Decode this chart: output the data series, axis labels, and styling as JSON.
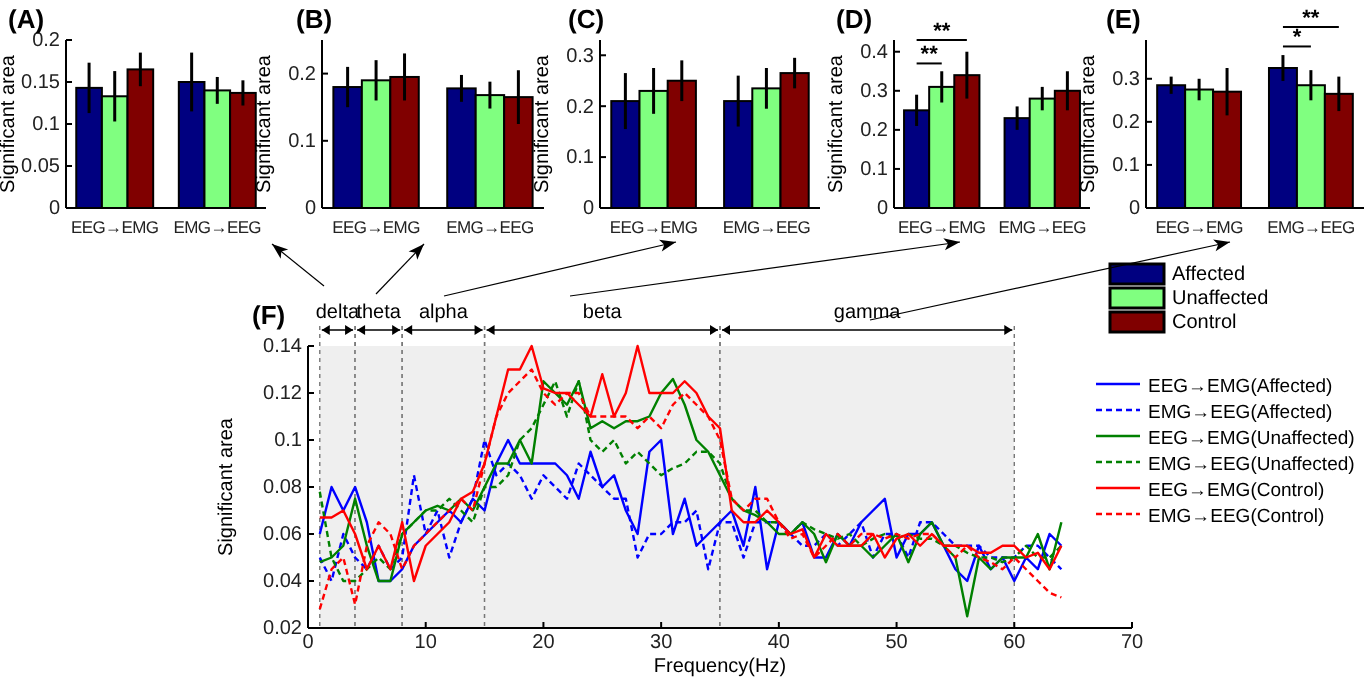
{
  "chart_data": [
    {
      "type": "bar",
      "title": "(A)",
      "ylabel": "Significant area",
      "categories": [
        "EEG→EMG",
        "EMG→EEG"
      ],
      "ylim": [
        0,
        0.2
      ],
      "yticks": [
        0,
        0.05,
        0.1,
        0.15,
        0.2
      ],
      "series": [
        {
          "color": "#000080",
          "values": [
            0.143,
            0.15
          ],
          "errors": [
            0.03,
            0.035
          ]
        },
        {
          "color": "#80ff80",
          "values": [
            0.133,
            0.14
          ],
          "errors": [
            0.03,
            0.016
          ]
        },
        {
          "color": "#800000",
          "values": [
            0.165,
            0.137
          ],
          "errors": [
            0.02,
            0.015
          ]
        }
      ]
    },
    {
      "type": "bar",
      "title": "(B)",
      "ylabel": "Significant area",
      "categories": [
        "EEG→EMG",
        "EMG→EEG"
      ],
      "ylim": [
        0,
        0.25
      ],
      "yticks": [
        0,
        0.1,
        0.2
      ],
      "series": [
        {
          "color": "#000080",
          "values": [
            0.18,
            0.178
          ],
          "errors": [
            0.03,
            0.02
          ]
        },
        {
          "color": "#80ff80",
          "values": [
            0.19,
            0.168
          ],
          "errors": [
            0.03,
            0.02
          ]
        },
        {
          "color": "#800000",
          "values": [
            0.195,
            0.165
          ],
          "errors": [
            0.035,
            0.04
          ]
        }
      ]
    },
    {
      "type": "bar",
      "title": "(C)",
      "ylabel": "Significant area",
      "categories": [
        "EEG→EMG",
        "EMG→EEG"
      ],
      "ylim": [
        0,
        0.33
      ],
      "yticks": [
        0,
        0.1,
        0.2,
        0.3
      ],
      "series": [
        {
          "color": "#000080",
          "values": [
            0.21,
            0.21
          ],
          "errors": [
            0.055,
            0.05
          ]
        },
        {
          "color": "#80ff80",
          "values": [
            0.23,
            0.235
          ],
          "errors": [
            0.045,
            0.04
          ]
        },
        {
          "color": "#800000",
          "values": [
            0.25,
            0.265
          ],
          "errors": [
            0.04,
            0.03
          ]
        }
      ]
    },
    {
      "type": "bar",
      "title": "(D)",
      "ylabel": "Significant area",
      "categories": [
        "EEG→EMG",
        "EMG→EEG"
      ],
      "ylim": [
        0,
        0.43
      ],
      "yticks": [
        0,
        0.1,
        0.2,
        0.3,
        0.4
      ],
      "series": [
        {
          "color": "#000080",
          "values": [
            0.25,
            0.23
          ],
          "errors": [
            0.04,
            0.03
          ]
        },
        {
          "color": "#80ff80",
          "values": [
            0.31,
            0.28
          ],
          "errors": [
            0.04,
            0.03
          ]
        },
        {
          "color": "#800000",
          "values": [
            0.34,
            0.3
          ],
          "errors": [
            0.06,
            0.05
          ]
        }
      ],
      "annotations": [
        "**",
        "**"
      ]
    },
    {
      "type": "bar",
      "title": "(E)",
      "ylabel": "Significant area",
      "categories": [
        "EEG→EMG",
        "EMG→EEG"
      ],
      "ylim": [
        0,
        0.39
      ],
      "yticks": [
        0,
        0.1,
        0.2,
        0.3
      ],
      "legend": "bottom left",
      "series": [
        {
          "name": "Affected",
          "color": "#000080",
          "values": [
            0.285,
            0.325
          ],
          "errors": [
            0.02,
            0.03
          ]
        },
        {
          "name": "Unaffected",
          "color": "#80ff80",
          "values": [
            0.275,
            0.285
          ],
          "errors": [
            0.025,
            0.035
          ]
        },
        {
          "name": "Control",
          "color": "#800000",
          "values": [
            0.27,
            0.265
          ],
          "errors": [
            0.055,
            0.04
          ]
        }
      ],
      "annotations": [
        "*",
        "**"
      ]
    },
    {
      "type": "line",
      "title": "(F)",
      "xlabel": "Frequency(Hz)",
      "ylabel": "Significant area",
      "xlim": [
        0,
        70
      ],
      "xticks": [
        0,
        10,
        20,
        30,
        40,
        50,
        60,
        70
      ],
      "ylim": [
        0.02,
        0.14
      ],
      "yticks": [
        0.02,
        0.04,
        0.06,
        0.08,
        0.1,
        0.12,
        0.14
      ],
      "legend": "right",
      "bands": [
        {
          "axis": "x",
          "from": 1,
          "to": 4,
          "label": "delta",
          "color": "#efefef"
        },
        {
          "axis": "x",
          "from": 4,
          "to": 8,
          "label": "theta",
          "color": "#efefef"
        },
        {
          "axis": "x",
          "from": 8,
          "to": 15,
          "label": "alpha",
          "color": "#efefef"
        },
        {
          "axis": "x",
          "from": 15,
          "to": 35,
          "label": "beta",
          "color": "#efefef"
        },
        {
          "axis": "x",
          "from": 35,
          "to": 60,
          "label": "gamma",
          "color": "#efefef"
        }
      ],
      "x": [
        1,
        2,
        3,
        4,
        5,
        6,
        7,
        8,
        9,
        10,
        11,
        12,
        13,
        14,
        15,
        16,
        17,
        18,
        19,
        20,
        21,
        22,
        23,
        24,
        25,
        26,
        27,
        28,
        29,
        30,
        31,
        32,
        33,
        34,
        35,
        36,
        37,
        38,
        39,
        40,
        41,
        42,
        43,
        44,
        45,
        46,
        47,
        48,
        49,
        50,
        51,
        52,
        53,
        54,
        55,
        56,
        57,
        58,
        59,
        60,
        61,
        62,
        63,
        64
      ],
      "series": [
        {
          "name": "EEG→EMG(Affected)",
          "color": "#0000ff",
          "line_style": "solid",
          "values": [
            0.06,
            0.08,
            0.07,
            0.08,
            0.065,
            0.04,
            0.04,
            0.045,
            0.055,
            0.06,
            0.065,
            0.07,
            0.065,
            0.075,
            0.07,
            0.09,
            0.1,
            0.09,
            0.09,
            0.09,
            0.09,
            0.085,
            0.075,
            0.095,
            0.08,
            0.085,
            0.07,
            0.06,
            0.095,
            0.1,
            0.06,
            0.075,
            0.055,
            0.06,
            0.065,
            0.07,
            0.055,
            0.08,
            0.045,
            0.065,
            0.06,
            0.065,
            0.05,
            0.05,
            0.06,
            0.055,
            0.065,
            0.07,
            0.075,
            0.05,
            0.06,
            0.06,
            0.065,
            0.055,
            0.045,
            0.04,
            0.055,
            0.045,
            0.05,
            0.04,
            0.05,
            0.045,
            0.06,
            0.055
          ]
        },
        {
          "name": "EMG→EEG(Affected)",
          "color": "#0000ff",
          "line_style": "dashed",
          "values": [
            0.05,
            0.04,
            0.06,
            0.05,
            0.045,
            0.055,
            0.045,
            0.05,
            0.085,
            0.06,
            0.07,
            0.05,
            0.065,
            0.075,
            0.1,
            0.085,
            0.09,
            0.085,
            0.075,
            0.085,
            0.08,
            0.075,
            0.09,
            0.085,
            0.08,
            0.075,
            0.075,
            0.05,
            0.06,
            0.06,
            0.065,
            0.065,
            0.07,
            0.045,
            0.065,
            0.065,
            0.05,
            0.065,
            0.065,
            0.065,
            0.06,
            0.055,
            0.055,
            0.06,
            0.055,
            0.06,
            0.065,
            0.05,
            0.06,
            0.06,
            0.05,
            0.065,
            0.065,
            0.06,
            0.055,
            0.055,
            0.055,
            0.05,
            0.05,
            0.05,
            0.055,
            0.055,
            0.05,
            0.045
          ]
        },
        {
          "name": "EEG→EMG(Unaffected)",
          "color": "#008000",
          "line_style": "solid",
          "values": [
            0.048,
            0.05,
            0.055,
            0.075,
            0.055,
            0.04,
            0.04,
            0.06,
            0.065,
            0.07,
            0.072,
            0.07,
            0.075,
            0.07,
            0.08,
            0.09,
            0.09,
            0.1,
            0.09,
            0.125,
            0.12,
            0.115,
            0.125,
            0.105,
            0.108,
            0.105,
            0.108,
            0.108,
            0.11,
            0.12,
            0.126,
            0.115,
            0.1,
            0.095,
            0.085,
            0.075,
            0.07,
            0.068,
            0.065,
            0.06,
            0.06,
            0.065,
            0.06,
            0.048,
            0.06,
            0.055,
            0.055,
            0.05,
            0.055,
            0.06,
            0.048,
            0.06,
            0.065,
            0.055,
            0.05,
            0.025,
            0.05,
            0.045,
            0.05,
            0.05,
            0.05,
            0.06,
            0.045,
            0.065
          ]
        },
        {
          "name": "EMG→EEG(Unaffected)",
          "color": "#008000",
          "line_style": "dashed",
          "values": [
            0.078,
            0.05,
            0.04,
            0.04,
            0.045,
            0.05,
            0.045,
            0.06,
            0.065,
            0.07,
            0.07,
            0.075,
            0.07,
            0.065,
            0.08,
            0.08,
            0.085,
            0.1,
            0.105,
            0.115,
            0.125,
            0.11,
            0.125,
            0.1,
            0.095,
            0.1,
            0.09,
            0.095,
            0.09,
            0.085,
            0.088,
            0.09,
            0.095,
            0.095,
            0.09,
            0.075,
            0.07,
            0.07,
            0.065,
            0.065,
            0.06,
            0.065,
            0.062,
            0.06,
            0.058,
            0.06,
            0.055,
            0.058,
            0.06,
            0.058,
            0.06,
            0.058,
            0.058,
            0.055,
            0.055,
            0.052,
            0.05,
            0.05,
            0.048,
            0.05,
            0.055,
            0.05,
            0.05,
            0.055
          ]
        },
        {
          "name": "EEG→EMG(Control)",
          "color": "#ff0000",
          "line_style": "solid",
          "values": [
            0.067,
            0.067,
            0.07,
            0.06,
            0.045,
            0.055,
            0.045,
            0.065,
            0.04,
            0.055,
            0.06,
            0.065,
            0.075,
            0.078,
            0.09,
            0.11,
            0.13,
            0.13,
            0.14,
            0.122,
            0.12,
            0.12,
            0.115,
            0.11,
            0.128,
            0.11,
            0.12,
            0.14,
            0.12,
            0.12,
            0.12,
            0.125,
            0.12,
            0.11,
            0.105,
            0.07,
            0.065,
            0.065,
            0.07,
            0.065,
            0.06,
            0.062,
            0.05,
            0.06,
            0.055,
            0.055,
            0.055,
            0.06,
            0.05,
            0.058,
            0.06,
            0.055,
            0.06,
            0.055,
            0.055,
            0.055,
            0.052,
            0.052,
            0.055,
            0.055,
            0.05,
            0.052,
            0.045,
            0.055
          ]
        },
        {
          "name": "EMG→EEG(Control)",
          "color": "#ff0000",
          "line_style": "dashed",
          "values": [
            0.028,
            0.045,
            0.05,
            0.03,
            0.055,
            0.065,
            0.06,
            0.045,
            0.055,
            0.06,
            0.065,
            0.07,
            0.075,
            0.07,
            0.09,
            0.11,
            0.12,
            0.125,
            0.13,
            0.12,
            0.115,
            0.12,
            0.12,
            0.11,
            0.11,
            0.11,
            0.11,
            0.105,
            0.11,
            0.105,
            0.115,
            0.12,
            0.115,
            0.11,
            0.1,
            0.075,
            0.07,
            0.075,
            0.075,
            0.065,
            0.058,
            0.06,
            0.05,
            0.055,
            0.06,
            0.055,
            0.06,
            0.06,
            0.058,
            0.06,
            0.058,
            0.06,
            0.06,
            0.055,
            0.05,
            0.055,
            0.05,
            0.048,
            0.045,
            0.05,
            0.045,
            0.04,
            0.035,
            0.033
          ]
        }
      ]
    }
  ]
}
